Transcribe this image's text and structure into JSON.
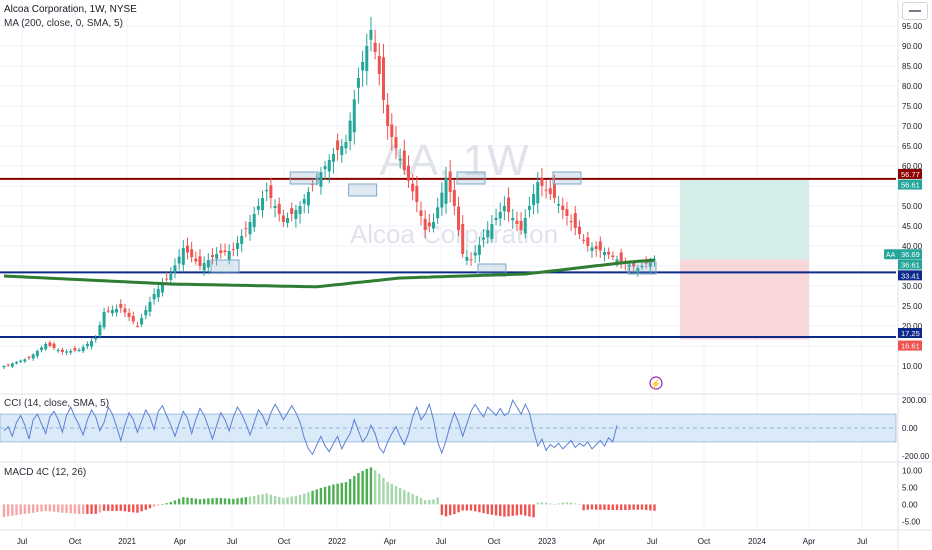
{
  "header": {
    "title": "Alcoa Corporation, 1W, NYSE",
    "ma_label": "MA (200, close, 0, SMA, 5)"
  },
  "watermark": {
    "symbol": "AA, 1W",
    "name": "Alcoa Corporation"
  },
  "cci_label": "CCI (14, close, SMA, 5)",
  "macd_label": "MACD 4C (12, 26)",
  "colors": {
    "up": "#26a69a",
    "down": "#ef5350",
    "ma": "#2e7d32",
    "resistance": "#8b0000",
    "support": "#0d2a8a",
    "box": "#7fa7c7",
    "cci": "#5b7fd6",
    "cci_band": "#dbeaf8",
    "macd_up_strong": "#4caf50",
    "macd_up_weak": "#a5d6a7",
    "macd_down_strong": "#ef5350",
    "macd_down_weak": "#f7a5a5",
    "tp_zone": "#d4ede9",
    "sl_zone": "#f8d7da"
  },
  "chart_data": [
    {
      "type": "candlestick",
      "title": "Alcoa Corporation, 1W, NYSE",
      "x_ticks": [
        "Jul",
        "Oct",
        "2021",
        "Apr",
        "Jul",
        "Oct",
        "2022",
        "Apr",
        "Jul",
        "Oct",
        "2023",
        "Apr",
        "Jul",
        "Oct",
        "2024",
        "Apr",
        "Jul"
      ],
      "y_ticks": [
        10.0,
        15.0,
        20.0,
        25.0,
        30.0,
        35.0,
        40.0,
        45.0,
        50.0,
        55.0,
        60.0,
        65.0,
        70.0,
        75.0,
        80.0,
        85.0,
        90.0,
        95.0
      ],
      "ylim": [
        3.5,
        100
      ],
      "price_anchors": [
        [
          0,
          10.0
        ],
        [
          6,
          12.0
        ],
        [
          10,
          15.5
        ],
        [
          14,
          13.5
        ],
        [
          18,
          14.0
        ],
        [
          22,
          17.0
        ],
        [
          24,
          23.5
        ],
        [
          28,
          24.5
        ],
        [
          32,
          20.0
        ],
        [
          36,
          28.0
        ],
        [
          40,
          33.0
        ],
        [
          43,
          39.5
        ],
        [
          47,
          35.0
        ],
        [
          51,
          38.0
        ],
        [
          55,
          39.0
        ],
        [
          59,
          46.0
        ],
        [
          63,
          54.0
        ],
        [
          67,
          46.0
        ],
        [
          71,
          50.0
        ],
        [
          75,
          57.0
        ],
        [
          79,
          63.0
        ],
        [
          82,
          66.0
        ],
        [
          85,
          82.0
        ],
        [
          88,
          94.0
        ],
        [
          90,
          83.0
        ],
        [
          92,
          70.0
        ],
        [
          96,
          59.0
        ],
        [
          99,
          51.0
        ],
        [
          101,
          44.0
        ],
        [
          103,
          46.0
        ],
        [
          106,
          57.0
        ],
        [
          108,
          50.0
        ],
        [
          110,
          38.0
        ],
        [
          112,
          36.5
        ],
        [
          116,
          44.0
        ],
        [
          120,
          50.0
        ],
        [
          124,
          44.0
        ],
        [
          128,
          56.0
        ],
        [
          132,
          52.0
        ],
        [
          136,
          46.0
        ],
        [
          140,
          40.0
        ],
        [
          144,
          38.5
        ],
        [
          148,
          36.0
        ],
        [
          152,
          34.5
        ],
        [
          156,
          36.69
        ]
      ],
      "ma_anchors": [
        [
          0,
          32.5
        ],
        [
          40,
          30.5
        ],
        [
          75,
          29.8
        ],
        [
          95,
          32.0
        ],
        [
          125,
          33.0
        ],
        [
          150,
          36.0
        ],
        [
          156,
          36.5
        ]
      ],
      "levels": [
        {
          "name": "resistance",
          "value": 56.77,
          "label": "56.77"
        },
        {
          "name": "support-upper",
          "value": 33.41,
          "label": "33.41"
        },
        {
          "name": "support-lower",
          "value": 17.25,
          "label": "17.25"
        }
      ],
      "price_tags": [
        {
          "name": "resistance-tag",
          "value": "56.77",
          "color": "#8b0000"
        },
        {
          "name": "target-tag",
          "value": "56.61",
          "color": "#26a69a"
        },
        {
          "name": "last-price-tag",
          "value": "36.69",
          "color": "#26a69a"
        },
        {
          "name": "entry-tag",
          "value": "36.61",
          "color": "#26a69a"
        },
        {
          "name": "support-tag",
          "value": "33.41",
          "color": "#0d2a8a"
        },
        {
          "name": "support2-tag",
          "value": "17.25",
          "color": "#0d2a8a"
        },
        {
          "name": "stop-tag",
          "value": "16.61",
          "color": "#ef5350"
        }
      ],
      "symbol_badge": "AA",
      "position": {
        "entry": 36.61,
        "target": 56.61,
        "stop": 16.61
      },
      "touch_boxes": [
        {
          "bar": 72,
          "price": 57
        },
        {
          "bar": 86,
          "price": 54
        },
        {
          "bar": 112,
          "price": 57
        },
        {
          "bar": 135,
          "price": 57
        },
        {
          "bar": 53,
          "price": 35
        },
        {
          "bar": 117,
          "price": 34
        },
        {
          "bar": 153,
          "price": 34.5
        }
      ]
    },
    {
      "type": "line",
      "title": "CCI (14, close, SMA, 5)",
      "y_ticks": [
        200.0,
        0.0,
        -200.0
      ],
      "ylim": [
        -230,
        230
      ],
      "band": [
        -100,
        100
      ],
      "values": [
        -20,
        10,
        -60,
        40,
        90,
        20,
        -80,
        60,
        100,
        30,
        -40,
        80,
        120,
        60,
        -30,
        90,
        150,
        80,
        20,
        -50,
        60,
        130,
        80,
        -20,
        40,
        150,
        100,
        10,
        -90,
        20,
        110,
        60,
        -30,
        50,
        130,
        80,
        -10,
        120,
        160,
        90,
        20,
        -60,
        30,
        120,
        70,
        -40,
        60,
        140,
        90,
        10,
        -80,
        20,
        110,
        60,
        -20,
        80,
        150,
        100,
        30,
        -50,
        40,
        130,
        90,
        20,
        110,
        170,
        120,
        60,
        110,
        160,
        110,
        40,
        -70,
        -150,
        -190,
        -120,
        -60,
        -130,
        -170,
        -110,
        -60,
        -150,
        -90,
        -40,
        60,
        -20,
        -100,
        -60,
        20,
        -40,
        -140,
        -180,
        -100,
        -40,
        10,
        -60,
        -120,
        -40,
        80,
        150,
        60,
        100,
        170,
        60,
        -100,
        -180,
        -90,
        20,
        110,
        40,
        -60,
        30,
        120,
        170,
        120,
        80,
        150,
        120,
        90,
        140,
        90,
        110,
        200,
        150,
        100,
        170,
        110,
        -20,
        -130,
        -80,
        -160,
        -120,
        -140,
        -110,
        -150,
        -120,
        -90,
        -140,
        -110,
        -130,
        -100,
        -150,
        -120,
        -90,
        -130,
        -70,
        -100,
        20
      ]
    },
    {
      "type": "bar",
      "title": "MACD 4C (12, 26)",
      "y_ticks": [
        10.0,
        5.0,
        0.0,
        -5.0
      ],
      "ylim": [
        -7,
        12
      ]
    }
  ]
}
